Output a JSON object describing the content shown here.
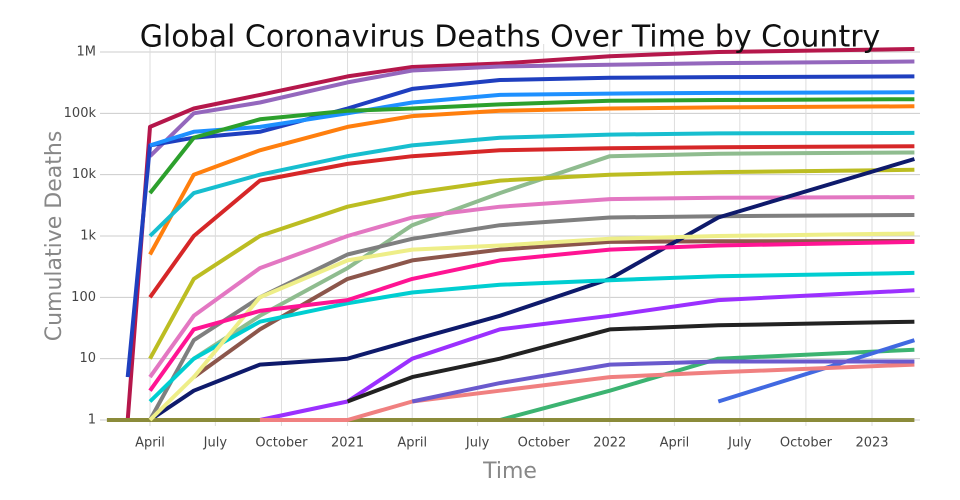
{
  "chart_data": {
    "type": "line",
    "title": "Global Coronavirus Deaths Over Time by Country",
    "x_label": "Time",
    "y_label": "Cumulative Deaths",
    "log_y": true,
    "grid": true,
    "xlim": [
      "2020-01",
      "2023-03"
    ],
    "xticks": [
      {
        "value": "2020-04",
        "label": "April"
      },
      {
        "value": "2020-07",
        "label": "July"
      },
      {
        "value": "2020-10",
        "label": "October"
      },
      {
        "value": "2021-01",
        "label": "2021"
      },
      {
        "value": "2021-04",
        "label": "April"
      },
      {
        "value": "2021-07",
        "label": "July"
      },
      {
        "value": "2021-10",
        "label": "October"
      },
      {
        "value": "2022-01",
        "label": "2022"
      },
      {
        "value": "2022-04",
        "label": "April"
      },
      {
        "value": "2022-07",
        "label": "July"
      },
      {
        "value": "2022-10",
        "label": "October"
      },
      {
        "value": "2023-01",
        "label": "2023"
      }
    ],
    "ylim": [
      1,
      1000000
    ],
    "yticks": [
      1,
      10,
      100,
      {
        "value": 1000,
        "label": "1k"
      },
      {
        "value": 10000,
        "label": "10k"
      },
      {
        "value": 100000,
        "label": "100k"
      },
      {
        "value": 1000000,
        "label": "1M"
      }
    ],
    "x": [
      "2020-02",
      "2020-03",
      "2020-04",
      "2020-06",
      "2020-09",
      "2021-01",
      "2021-04",
      "2021-08",
      "2022-01",
      "2022-06",
      "2023-03"
    ],
    "series": [
      {
        "color": "#b5174b",
        "values": [
          null,
          1,
          60000,
          120000,
          200000,
          400000,
          570000,
          650000,
          850000,
          1000000,
          1120000
        ]
      },
      {
        "color": "#9467bd",
        "values": [
          null,
          null,
          20000,
          100000,
          150000,
          320000,
          500000,
          580000,
          620000,
          660000,
          700000
        ]
      },
      {
        "color": "#1f3fbf",
        "values": [
          null,
          5,
          30000,
          40000,
          50000,
          120000,
          250000,
          350000,
          380000,
          390000,
          400000
        ]
      },
      {
        "color": "#1e90ff",
        "values": [
          null,
          null,
          30000,
          50000,
          60000,
          100000,
          150000,
          200000,
          210000,
          215000,
          220000
        ]
      },
      {
        "color": "#2ca02c",
        "values": [
          null,
          null,
          5000,
          40000,
          80000,
          110000,
          120000,
          140000,
          160000,
          165000,
          170000
        ]
      },
      {
        "color": "#ff7f0e",
        "values": [
          null,
          null,
          500,
          10000,
          25000,
          60000,
          90000,
          110000,
          120000,
          125000,
          130000
        ]
      },
      {
        "color": "#17becf",
        "values": [
          null,
          null,
          1000,
          5000,
          10000,
          20000,
          30000,
          40000,
          45000,
          47000,
          48000
        ]
      },
      {
        "color": "#d62728",
        "values": [
          null,
          null,
          100,
          1000,
          8000,
          15000,
          20000,
          25000,
          27000,
          28000,
          29000
        ]
      },
      {
        "color": "#8fbc8f",
        "values": [
          null,
          null,
          null,
          10,
          50,
          300,
          1500,
          5000,
          20000,
          22000,
          23000
        ]
      },
      {
        "color": "#bcbd22",
        "values": [
          null,
          null,
          10,
          200,
          1000,
          3000,
          5000,
          8000,
          10000,
          11000,
          12000
        ]
      },
      {
        "color": "#e377c2",
        "values": [
          null,
          null,
          5,
          50,
          300,
          1000,
          2000,
          3000,
          4000,
          4200,
          4300
        ]
      },
      {
        "color": "#7f7f7f",
        "values": [
          null,
          null,
          1,
          20,
          100,
          500,
          900,
          1500,
          2000,
          2100,
          2200
        ]
      },
      {
        "color": "#8c564b",
        "values": [
          null,
          null,
          null,
          5,
          30,
          200,
          400,
          600,
          800,
          820,
          830
        ]
      },
      {
        "color": "#0e1a6b",
        "values": [
          null,
          null,
          1,
          3,
          8,
          10,
          20,
          50,
          200,
          2000,
          18000
        ]
      },
      {
        "color": "#00ced1",
        "values": [
          null,
          null,
          2,
          10,
          40,
          80,
          120,
          160,
          190,
          220,
          250
        ]
      },
      {
        "color": "#9b30ff",
        "values": [
          null,
          null,
          null,
          null,
          1,
          2,
          10,
          30,
          50,
          90,
          130
        ]
      },
      {
        "color": "#222222",
        "values": [
          null,
          null,
          null,
          null,
          null,
          2,
          5,
          10,
          30,
          35,
          40
        ]
      },
      {
        "color": "#3cb371",
        "values": [
          null,
          null,
          null,
          null,
          null,
          null,
          null,
          1,
          3,
          10,
          14
        ]
      },
      {
        "color": "#8b8b3a",
        "values": [
          1,
          1,
          1,
          1,
          1,
          1,
          1,
          1,
          1,
          1,
          1
        ]
      },
      {
        "color": "#4169e1",
        "values": [
          null,
          null,
          null,
          null,
          null,
          null,
          null,
          null,
          null,
          2,
          20
        ]
      },
      {
        "color": "#f08080",
        "values": [
          null,
          null,
          null,
          null,
          1,
          1,
          2,
          3,
          5,
          6,
          8
        ]
      },
      {
        "color": "#eeee88",
        "values": [
          null,
          null,
          1,
          5,
          100,
          400,
          600,
          700,
          900,
          1000,
          1100
        ]
      },
      {
        "color": "#ff1493",
        "values": [
          null,
          null,
          3,
          30,
          60,
          90,
          200,
          400,
          600,
          700,
          800
        ]
      },
      {
        "color": "#6a5acd",
        "values": [
          null,
          null,
          null,
          null,
          null,
          null,
          2,
          4,
          8,
          9,
          9
        ]
      }
    ]
  }
}
